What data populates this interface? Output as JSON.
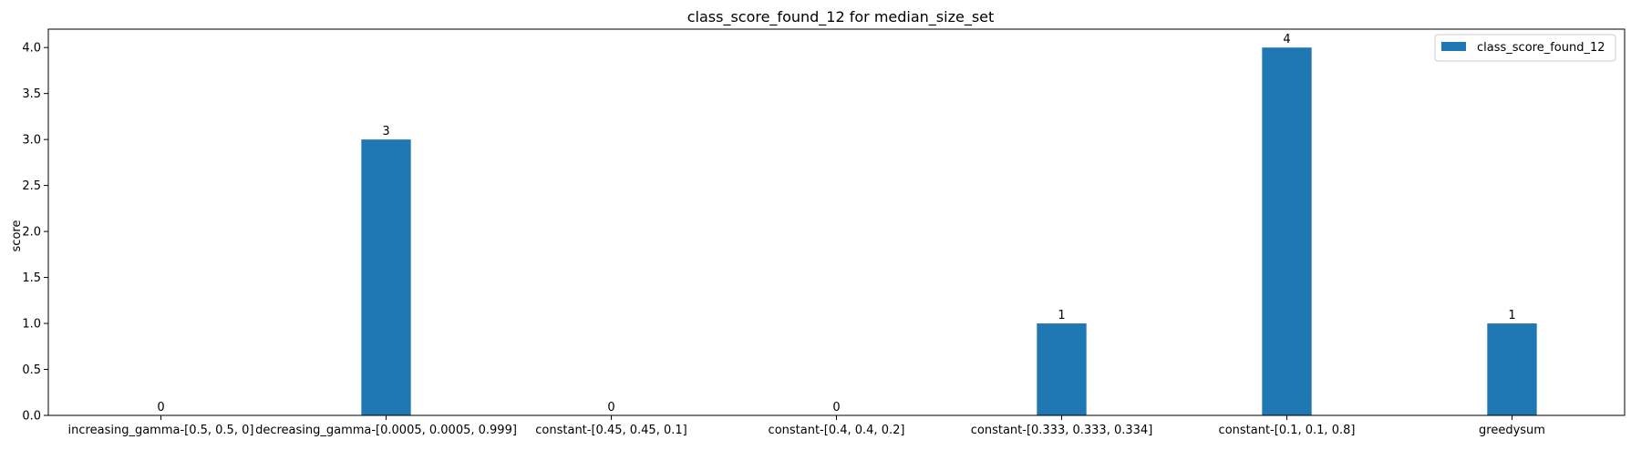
{
  "chart_data": {
    "type": "bar",
    "title": "class_score_found_12 for median_size_set",
    "xlabel": "",
    "ylabel": "score",
    "categories": [
      "increasing_gamma-[0.5, 0.5, 0]",
      "decreasing_gamma-[0.0005, 0.0005, 0.999]",
      "constant-[0.45, 0.45, 0.1]",
      "constant-[0.4, 0.4, 0.2]",
      "constant-[0.333, 0.333, 0.334]",
      "constant-[0.1, 0.1, 0.8]",
      "greedysum"
    ],
    "series": [
      {
        "name": "class_score_found_12",
        "values": [
          0,
          3,
          0,
          0,
          1,
          4,
          1
        ],
        "color": "#1f77b4"
      }
    ],
    "ylim": [
      0,
      4.2
    ],
    "yticks": [
      "0.0",
      "0.5",
      "1.0",
      "1.5",
      "2.0",
      "2.5",
      "3.0",
      "3.5",
      "4.0"
    ],
    "data_labels": [
      "0",
      "3",
      "0",
      "0",
      "1",
      "4",
      "1"
    ],
    "legend": {
      "position": "top-right",
      "entries": [
        "class_score_found_12"
      ]
    },
    "grid": false
  }
}
